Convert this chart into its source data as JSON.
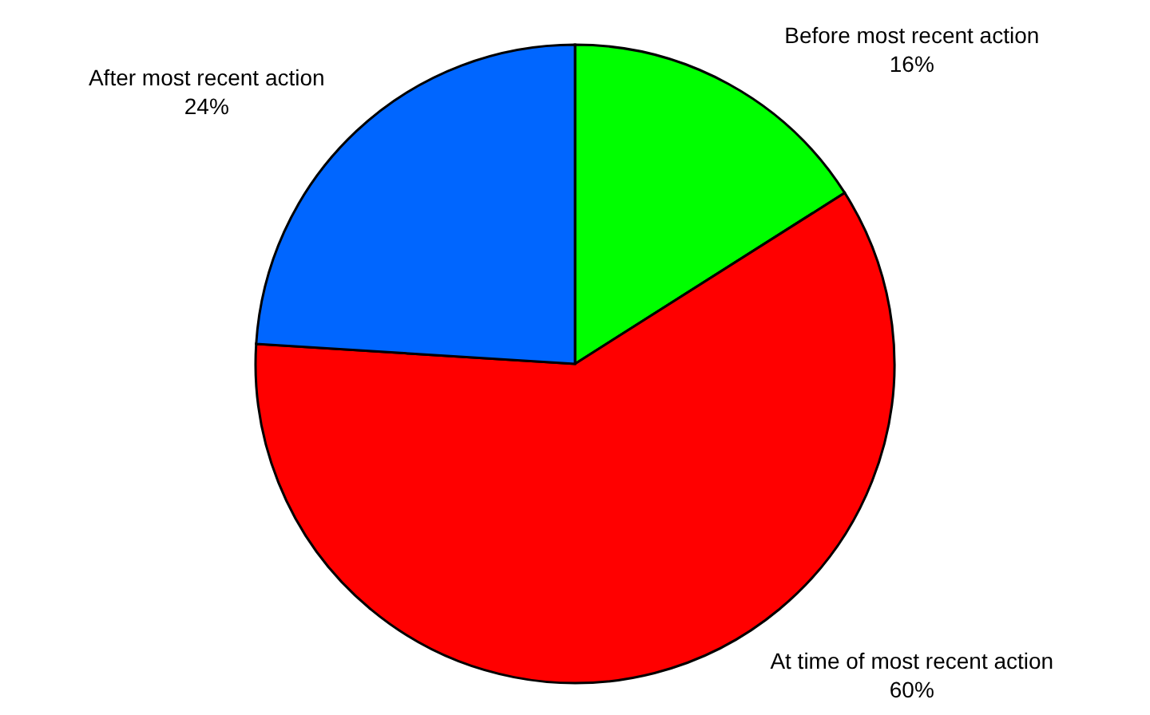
{
  "chart_data": {
    "type": "pie",
    "categories": [
      "Before most recent action",
      "At time of most recent action",
      "After most recent action"
    ],
    "values": [
      16,
      60,
      24
    ],
    "colors": [
      "#00ff00",
      "#ff0000",
      "#0066ff"
    ],
    "value_labels": [
      "16%",
      "60%",
      "24%"
    ],
    "legend": false
  }
}
